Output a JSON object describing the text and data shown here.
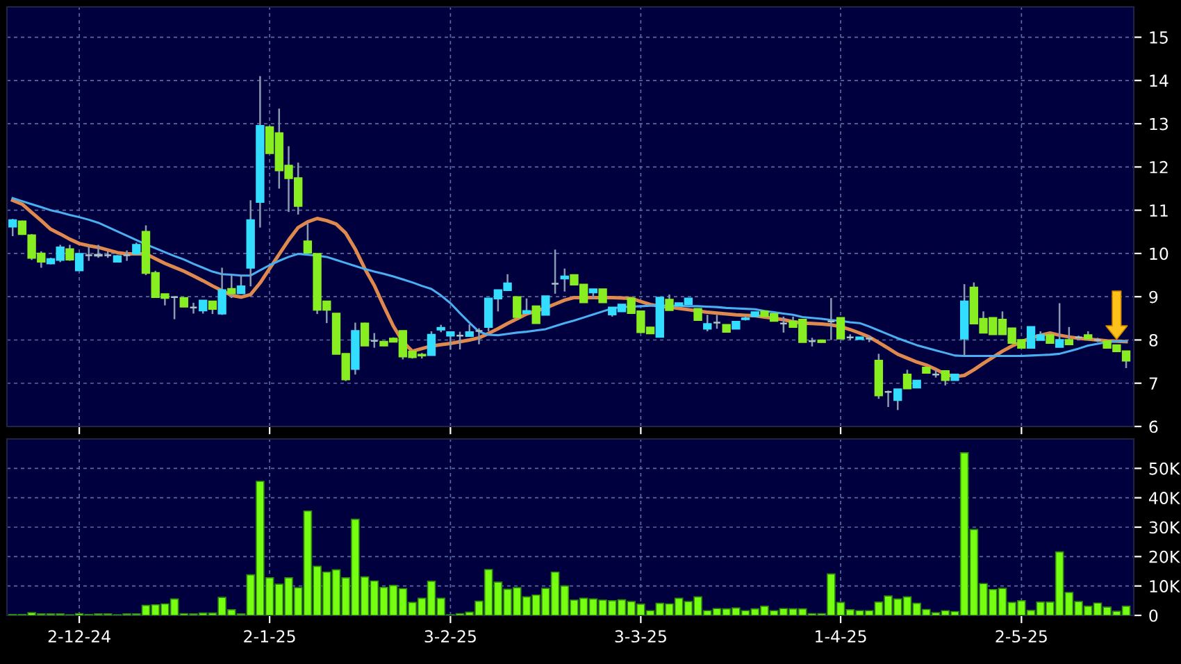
{
  "chart_data": [
    {
      "type": "candlestick",
      "ohlc": [
        [
          10.62,
          10.8,
          10.4,
          10.77
        ],
        [
          10.74,
          10.76,
          10.43,
          10.45
        ],
        [
          10.42,
          10.45,
          9.85,
          9.9
        ],
        [
          10.0,
          10.05,
          9.67,
          9.81
        ],
        [
          9.77,
          9.9,
          9.75,
          9.87
        ],
        [
          9.85,
          10.2,
          9.8,
          10.14
        ],
        [
          10.1,
          10.2,
          9.83,
          9.86
        ],
        [
          9.61,
          10.0,
          9.6,
          9.99
        ],
        [
          9.96,
          10.17,
          9.83,
          9.96
        ],
        [
          9.97,
          10.2,
          9.9,
          9.95
        ],
        [
          9.96,
          10.05,
          9.9,
          9.96
        ],
        [
          9.81,
          9.96,
          9.8,
          9.94
        ],
        [
          9.96,
          10.07,
          9.83,
          9.96
        ],
        [
          10.0,
          10.25,
          9.95,
          10.2
        ],
        [
          10.5,
          10.65,
          9.5,
          9.55
        ],
        [
          9.55,
          9.6,
          8.99,
          8.99
        ],
        [
          9.06,
          9.06,
          8.8,
          8.97
        ],
        [
          8.99,
          9.0,
          8.48,
          8.99
        ],
        [
          8.97,
          8.97,
          8.77,
          8.77
        ],
        [
          8.75,
          8.86,
          8.61,
          8.75
        ],
        [
          8.68,
          8.91,
          8.61,
          8.91
        ],
        [
          8.89,
          8.89,
          8.6,
          8.72
        ],
        [
          8.61,
          9.67,
          8.58,
          9.15
        ],
        [
          9.18,
          9.5,
          8.97,
          9.08
        ],
        [
          9.08,
          9.5,
          9.08,
          9.24
        ],
        [
          9.67,
          11.23,
          9.24,
          10.77
        ],
        [
          11.19,
          14.1,
          10.6,
          12.95
        ],
        [
          12.92,
          12.95,
          12.32,
          12.32
        ],
        [
          12.78,
          13.35,
          11.5,
          11.92
        ],
        [
          12.03,
          12.48,
          10.96,
          11.74
        ],
        [
          11.74,
          12.1,
          10.9,
          11.1
        ],
        [
          10.28,
          10.69,
          10.02,
          10.02
        ],
        [
          9.99,
          9.99,
          8.6,
          8.7
        ],
        [
          8.89,
          8.89,
          8.39,
          8.7
        ],
        [
          8.61,
          8.61,
          7.68,
          7.68
        ],
        [
          7.68,
          7.68,
          7.05,
          7.09
        ],
        [
          7.33,
          8.4,
          7.2,
          8.21
        ],
        [
          8.38,
          8.4,
          7.87,
          7.87
        ],
        [
          7.98,
          8.16,
          7.82,
          7.98
        ],
        [
          7.96,
          7.96,
          7.87,
          7.87
        ],
        [
          8.03,
          8.06,
          7.96,
          7.96
        ],
        [
          8.21,
          8.21,
          7.55,
          7.62
        ],
        [
          7.73,
          7.73,
          7.57,
          7.6
        ],
        [
          7.66,
          7.7,
          7.57,
          7.64
        ],
        [
          7.65,
          8.2,
          7.65,
          8.12
        ],
        [
          8.24,
          8.35,
          8.18,
          8.28
        ],
        [
          8.1,
          8.18,
          7.78,
          8.18
        ],
        [
          8.1,
          8.19,
          7.78,
          8.1
        ],
        [
          8.09,
          8.36,
          8.09,
          8.18
        ],
        [
          8.21,
          8.27,
          7.9,
          8.21
        ],
        [
          8.3,
          8.96,
          8.2,
          8.96
        ],
        [
          8.96,
          9.15,
          8.66,
          9.15
        ],
        [
          9.15,
          9.52,
          9.15,
          9.31
        ],
        [
          8.99,
          8.99,
          8.53,
          8.53
        ],
        [
          8.62,
          8.96,
          8.62,
          8.67
        ],
        [
          8.78,
          8.78,
          8.39,
          8.39
        ],
        [
          8.58,
          9.01,
          8.58,
          9.01
        ],
        [
          9.3,
          10.09,
          9.07,
          9.3
        ],
        [
          9.42,
          9.65,
          9.12,
          9.47
        ],
        [
          9.5,
          9.5,
          9.28,
          9.28
        ],
        [
          9.28,
          9.28,
          8.87,
          8.87
        ],
        [
          9.1,
          9.17,
          8.96,
          9.17
        ],
        [
          9.17,
          9.17,
          8.87,
          8.87
        ],
        [
          8.59,
          8.75,
          8.54,
          8.75
        ],
        [
          8.66,
          8.82,
          8.66,
          8.82
        ],
        [
          8.96,
          8.96,
          8.62,
          8.62
        ],
        [
          8.66,
          8.66,
          8.18,
          8.18
        ],
        [
          8.29,
          8.29,
          8.15,
          8.15
        ],
        [
          8.07,
          8.98,
          8.07,
          8.98
        ],
        [
          8.93,
          9.05,
          8.69,
          8.69
        ],
        [
          8.8,
          8.85,
          8.8,
          8.85
        ],
        [
          8.83,
          8.96,
          8.83,
          8.96
        ],
        [
          8.72,
          8.72,
          8.46,
          8.46
        ],
        [
          8.26,
          8.58,
          8.2,
          8.37
        ],
        [
          8.4,
          8.58,
          8.26,
          8.4
        ],
        [
          8.35,
          8.35,
          8.19,
          8.19
        ],
        [
          8.26,
          8.42,
          8.26,
          8.42
        ],
        [
          8.48,
          8.55,
          8.45,
          8.5
        ],
        [
          8.55,
          8.64,
          8.55,
          8.64
        ],
        [
          8.66,
          8.66,
          8.55,
          8.55
        ],
        [
          8.6,
          8.6,
          8.44,
          8.44
        ],
        [
          8.38,
          8.54,
          8.17,
          8.38
        ],
        [
          8.43,
          8.54,
          8.3,
          8.3
        ],
        [
          8.47,
          8.47,
          7.95,
          7.95
        ],
        [
          7.97,
          8.05,
          7.85,
          7.97
        ],
        [
          7.99,
          7.99,
          7.95,
          7.95
        ],
        [
          8.43,
          8.97,
          8.0,
          8.43
        ],
        [
          8.51,
          8.51,
          8.03,
          8.03
        ],
        [
          8.06,
          8.13,
          8.0,
          8.06
        ],
        [
          8.02,
          8.06,
          8.02,
          8.06
        ],
        [
          8.03,
          8.1,
          7.95,
          8.03
        ],
        [
          7.52,
          7.68,
          6.64,
          6.72
        ],
        [
          6.8,
          6.83,
          6.45,
          6.8
        ],
        [
          6.61,
          6.86,
          6.38,
          6.86
        ],
        [
          7.2,
          7.31,
          6.88,
          6.88
        ],
        [
          6.9,
          7.06,
          6.9,
          7.06
        ],
        [
          7.36,
          7.36,
          7.24,
          7.24
        ],
        [
          7.2,
          7.31,
          7.13,
          7.2
        ],
        [
          7.28,
          7.28,
          6.95,
          7.07
        ],
        [
          7.07,
          7.2,
          7.07,
          7.2
        ],
        [
          8.03,
          9.29,
          7.63,
          8.89
        ],
        [
          9.21,
          9.33,
          8.38,
          8.38
        ],
        [
          8.49,
          8.66,
          8.17,
          8.17
        ],
        [
          8.51,
          8.51,
          8.13,
          8.13
        ],
        [
          8.47,
          8.66,
          8.13,
          8.13
        ],
        [
          8.27,
          8.27,
          7.93,
          7.93
        ],
        [
          8.0,
          8.0,
          7.82,
          7.82
        ],
        [
          7.82,
          8.3,
          7.82,
          8.3
        ],
        [
          8.0,
          8.2,
          8.0,
          8.11
        ],
        [
          8.11,
          8.11,
          7.93,
          7.93
        ],
        [
          7.84,
          8.85,
          7.84,
          8.0
        ],
        [
          8.0,
          8.3,
          7.9,
          7.9
        ],
        [
          8.06,
          8.1,
          8.0,
          8.06
        ],
        [
          8.11,
          8.2,
          8.03,
          8.03
        ],
        [
          8.0,
          8.05,
          7.95,
          8.0
        ],
        [
          7.97,
          7.97,
          7.82,
          7.82
        ],
        [
          7.88,
          7.88,
          7.74,
          7.74
        ],
        [
          7.74,
          7.74,
          7.35,
          7.52
        ]
      ],
      "colors": [
        "#33ddff",
        "#88ee22",
        "#88ee22",
        "#88ee22",
        "#33ddff",
        "#33ddff",
        "#88ee22",
        "#33ddff",
        "#a9c4c4",
        "#a9c4c4",
        "#a9c4c4",
        "#33ddff",
        "#a9c4c4",
        "#33ddff",
        "#88ee22",
        "#88ee22",
        "#88ee22",
        "#a9c4c4",
        "#88ee22",
        "#a9c4c4",
        "#33ddff",
        "#88ee22",
        "#33ddff",
        "#88ee22",
        "#33ddff",
        "#33ddff",
        "#33ddff",
        "#88ee22",
        "#88ee22",
        "#88ee22",
        "#88ee22",
        "#88ee22",
        "#88ee22",
        "#88ee22",
        "#88ee22",
        "#88ee22",
        "#33ddff",
        "#88ee22",
        "#a9c4c4",
        "#88ee22",
        "#88ee22",
        "#88ee22",
        "#88ee22",
        "#88ee22",
        "#33ddff",
        "#33ddff",
        "#33ddff",
        "#a9c4c4",
        "#33ddff",
        "#a9c4c4",
        "#33ddff",
        "#33ddff",
        "#33ddff",
        "#88ee22",
        "#33ddff",
        "#88ee22",
        "#33ddff",
        "#a9c4c4",
        "#33ddff",
        "#88ee22",
        "#88ee22",
        "#33ddff",
        "#88ee22",
        "#33ddff",
        "#33ddff",
        "#88ee22",
        "#88ee22",
        "#88ee22",
        "#33ddff",
        "#88ee22",
        "#33ddff",
        "#33ddff",
        "#88ee22",
        "#33ddff",
        "#a9c4c4",
        "#88ee22",
        "#33ddff",
        "#33ddff",
        "#33ddff",
        "#88ee22",
        "#88ee22",
        "#a9c4c4",
        "#88ee22",
        "#88ee22",
        "#a9c4c4",
        "#88ee22",
        "#a9c4c4",
        "#88ee22",
        "#a9c4c4",
        "#33ddff",
        "#a9c4c4",
        "#88ee22",
        "#a9c4c4",
        "#33ddff",
        "#88ee22",
        "#33ddff",
        "#88ee22",
        "#a9c4c4",
        "#88ee22",
        "#33ddff",
        "#33ddff",
        "#88ee22",
        "#88ee22",
        "#88ee22",
        "#88ee22",
        "#88ee22",
        "#88ee22",
        "#33ddff",
        "#33ddff",
        "#88ee22",
        "#33ddff",
        "#88ee22",
        "#a9c4c4",
        "#88ee22",
        "#a9c4c4",
        "#88ee22",
        "#88ee22",
        "#88ee22"
      ],
      "series": [
        {
          "type": "line",
          "color": "#e0894e",
          "values": [
            11.23,
            11.14,
            10.95,
            10.76,
            10.56,
            10.45,
            10.33,
            10.23,
            10.18,
            10.14,
            10.08,
            10.02,
            9.99,
            9.99,
            9.99,
            9.88,
            9.77,
            9.68,
            9.59,
            9.48,
            9.37,
            9.25,
            9.14,
            9.03,
            8.99,
            9.05,
            9.32,
            9.65,
            9.98,
            10.31,
            10.6,
            10.73,
            10.81,
            10.76,
            10.68,
            10.47,
            10.1,
            9.65,
            9.26,
            8.78,
            8.32,
            7.96,
            7.74,
            7.8,
            7.86,
            7.89,
            7.92,
            7.96,
            8.0,
            8.05,
            8.15,
            8.26,
            8.38,
            8.49,
            8.6,
            8.67,
            8.74,
            8.83,
            8.92,
            8.98,
            8.98,
            8.98,
            8.98,
            8.98,
            8.97,
            8.96,
            8.89,
            8.82,
            8.78,
            8.76,
            8.73,
            8.7,
            8.67,
            8.64,
            8.62,
            8.6,
            8.58,
            8.57,
            8.56,
            8.53,
            8.5,
            8.47,
            8.42,
            8.39,
            8.38,
            8.37,
            8.35,
            8.31,
            8.24,
            8.16,
            8.07,
            7.94,
            7.81,
            7.67,
            7.58,
            7.49,
            7.42,
            7.32,
            7.21,
            7.15,
            7.18,
            7.31,
            7.46,
            7.6,
            7.74,
            7.86,
            7.96,
            8.04,
            8.11,
            8.16,
            8.11,
            8.07,
            8.04,
            8.02,
            8.0,
            7.98,
            7.97,
            7.96
          ]
        },
        {
          "type": "line",
          "color": "#4aaef0",
          "values": [
            11.28,
            11.21,
            11.14,
            11.07,
            11.0,
            10.95,
            10.89,
            10.84,
            10.78,
            10.71,
            10.61,
            10.51,
            10.41,
            10.31,
            10.21,
            10.12,
            10.03,
            9.94,
            9.86,
            9.76,
            9.67,
            9.58,
            9.52,
            9.51,
            9.49,
            9.49,
            9.61,
            9.73,
            9.83,
            9.92,
            9.99,
            9.97,
            9.95,
            9.92,
            9.85,
            9.78,
            9.71,
            9.64,
            9.58,
            9.53,
            9.47,
            9.4,
            9.33,
            9.25,
            9.18,
            9.03,
            8.85,
            8.62,
            8.4,
            8.19,
            8.12,
            8.11,
            8.14,
            8.17,
            8.19,
            8.22,
            8.25,
            8.32,
            8.39,
            8.45,
            8.52,
            8.59,
            8.66,
            8.73,
            8.76,
            8.77,
            8.78,
            8.79,
            8.8,
            8.79,
            8.79,
            8.78,
            8.78,
            8.77,
            8.76,
            8.74,
            8.73,
            8.72,
            8.71,
            8.67,
            8.64,
            8.61,
            8.58,
            8.53,
            8.51,
            8.49,
            8.46,
            8.44,
            8.41,
            8.39,
            8.31,
            8.22,
            8.13,
            8.04,
            7.96,
            7.88,
            7.82,
            7.76,
            7.7,
            7.64,
            7.63,
            7.63,
            7.63,
            7.63,
            7.63,
            7.63,
            7.63,
            7.64,
            7.65,
            7.66,
            7.68,
            7.74,
            7.8,
            7.87,
            7.91,
            7.95,
            7.97,
            7.97
          ]
        }
      ],
      "ylim": [
        6,
        15.7
      ],
      "yticks": [
        6,
        7,
        8,
        9,
        10,
        11,
        12,
        13,
        14,
        15
      ],
      "grid": true,
      "tick_labels": "y"
    },
    {
      "type": "bar",
      "categories": [
        null,
        null,
        null,
        null,
        null,
        null,
        null,
        "2-12-24",
        null,
        null,
        null,
        null,
        null,
        null,
        null,
        null,
        null,
        null,
        null,
        null,
        null,
        null,
        null,
        null,
        null,
        null,
        null,
        "2-1-25",
        null,
        null,
        null,
        null,
        null,
        null,
        null,
        null,
        null,
        null,
        null,
        null,
        null,
        null,
        null,
        null,
        null,
        null,
        "3-2-25",
        null,
        null,
        null,
        null,
        null,
        null,
        null,
        null,
        null,
        null,
        null,
        null,
        null,
        null,
        null,
        null,
        null,
        null,
        null,
        "3-3-25",
        null,
        null,
        null,
        null,
        null,
        null,
        null,
        null,
        null,
        null,
        null,
        null,
        null,
        null,
        null,
        null,
        null,
        null,
        null,
        null,
        "1-4-25",
        null,
        null,
        null,
        null,
        null,
        null,
        null,
        null,
        null,
        null,
        null,
        null,
        null,
        null,
        null,
        null,
        null,
        null,
        "2-5-25",
        null,
        null,
        null,
        null,
        null,
        null,
        null,
        null,
        null,
        null,
        null
      ],
      "color": "#77ff11",
      "values": [
        0.3,
        0.3,
        0.9,
        0.5,
        0.5,
        0.5,
        0.2,
        0.6,
        0.3,
        0.5,
        0.5,
        0.2,
        0.5,
        0.5,
        3.4,
        3.6,
        3.9,
        5.6,
        0.6,
        0.5,
        0.8,
        0.8,
        6.1,
        1.9,
        0.5,
        13.8,
        45.6,
        12.8,
        10.6,
        12.8,
        9.4,
        35.5,
        16.7,
        14.7,
        15.5,
        12.8,
        32.7,
        13.1,
        11.7,
        9.5,
        10.2,
        9.1,
        4.4,
        5.8,
        11.6,
        5.8,
        0.2,
        0.6,
        1.1,
        4.8,
        15.6,
        11.3,
        8.9,
        9.4,
        6.3,
        6.9,
        9.2,
        14.7,
        10.0,
        5.2,
        5.8,
        5.6,
        5.2,
        5.0,
        5.3,
        4.7,
        3.8,
        1.6,
        4.1,
        3.9,
        5.8,
        4.7,
        6.3,
        1.6,
        2.3,
        2.2,
        2.5,
        1.6,
        2.2,
        3.1,
        1.6,
        2.3,
        2.2,
        2.2,
        0.6,
        0.6,
        14.1,
        4.4,
        1.9,
        1.6,
        1.6,
        4.5,
        6.6,
        5.6,
        6.3,
        4.1,
        2.0,
        0.9,
        1.6,
        1.3,
        55.3,
        29.2,
        10.8,
        8.8,
        9.2,
        4.4,
        5.0,
        1.7,
        4.5,
        4.5,
        21.6,
        7.8,
        4.7,
        3.1,
        4.2,
        2.8,
        1.4,
        3.1
      ],
      "ylim": [
        0,
        60
      ],
      "yticks": [
        0,
        {
          "value": 10,
          "label": "10K"
        },
        {
          "value": 20,
          "label": "20K"
        },
        {
          "value": 30,
          "label": "30K"
        },
        {
          "value": 40,
          "label": "40K"
        },
        {
          "value": 50,
          "label": "50K"
        }
      ],
      "grid": true
    }
  ]
}
